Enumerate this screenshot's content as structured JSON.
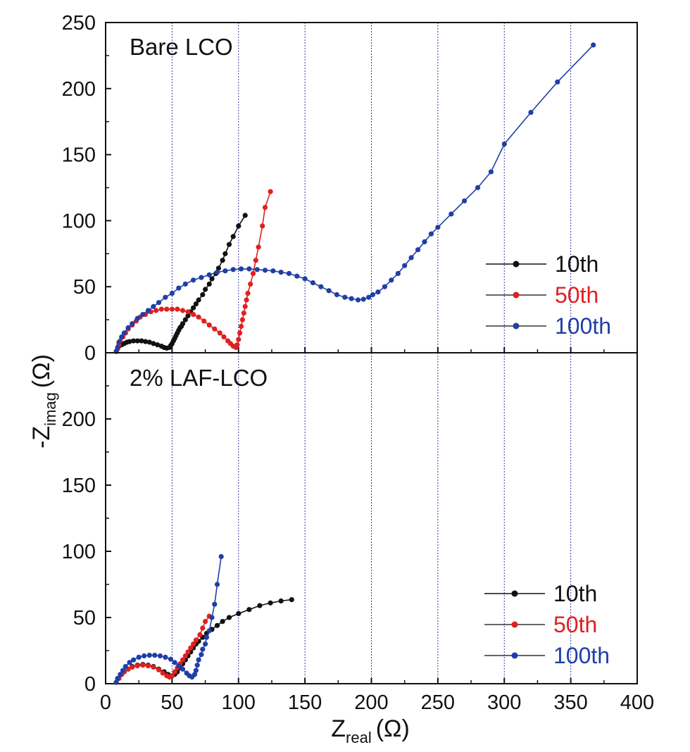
{
  "chart_data": [
    {
      "type": "scatter",
      "title": "Bare LCO",
      "xlabel": "Zreal (Ω)",
      "ylabel": "-Zimag (Ω)",
      "xlim": [
        0,
        400
      ],
      "ylim": [
        0,
        250
      ],
      "x_ticks": [
        0,
        50,
        100,
        150,
        200,
        250,
        300,
        350,
        400
      ],
      "y_ticks": [
        0,
        50,
        100,
        150,
        200,
        250
      ],
      "vertical_gridlines": [
        50,
        100,
        150,
        200,
        250,
        300,
        350
      ],
      "legend_position": "right",
      "series": [
        {
          "name": "10th",
          "color": "#111111",
          "points": [
            [
              8,
              1
            ],
            [
              9,
              3
            ],
            [
              10,
              5
            ],
            [
              12,
              6
            ],
            [
              14,
              7
            ],
            [
              16,
              8
            ],
            [
              18,
              8.5
            ],
            [
              21,
              9
            ],
            [
              24,
              9
            ],
            [
              27,
              9
            ],
            [
              30,
              8.5
            ],
            [
              33,
              8
            ],
            [
              36,
              7
            ],
            [
              39,
              6
            ],
            [
              42,
              5
            ],
            [
              44,
              4
            ],
            [
              46,
              3.5
            ],
            [
              48,
              4
            ],
            [
              49,
              5.5
            ],
            [
              50,
              7
            ],
            [
              51,
              9
            ],
            [
              52,
              11
            ],
            [
              53,
              13
            ],
            [
              54,
              15
            ],
            [
              55,
              17
            ],
            [
              56,
              19
            ],
            [
              57,
              20
            ],
            [
              58,
              22
            ],
            [
              60,
              25
            ],
            [
              62,
              28
            ],
            [
              64,
              31
            ],
            [
              66,
              34
            ],
            [
              68,
              37
            ],
            [
              70,
              40
            ],
            [
              73,
              44
            ],
            [
              75,
              48
            ],
            [
              78,
              52
            ],
            [
              80,
              56
            ],
            [
              83,
              60
            ],
            [
              85,
              64
            ],
            [
              88,
              70
            ],
            [
              90,
              75
            ],
            [
              93,
              82
            ],
            [
              96,
              88
            ],
            [
              100,
              96
            ],
            [
              105,
              104
            ]
          ]
        },
        {
          "name": "50th",
          "color": "#e02020",
          "points": [
            [
              8,
              1
            ],
            [
              9,
              3
            ],
            [
              10,
              6
            ],
            [
              11,
              9
            ],
            [
              13,
              12
            ],
            [
              15,
              15
            ],
            [
              17,
              18
            ],
            [
              20,
              21
            ],
            [
              23,
              24
            ],
            [
              26,
              27
            ],
            [
              30,
              29
            ],
            [
              34,
              31
            ],
            [
              38,
              32
            ],
            [
              42,
              33
            ],
            [
              46,
              33
            ],
            [
              50,
              33
            ],
            [
              54,
              33
            ],
            [
              58,
              32
            ],
            [
              62,
              31
            ],
            [
              66,
              29
            ],
            [
              70,
              27
            ],
            [
              74,
              24
            ],
            [
              78,
              21
            ],
            [
              82,
              18
            ],
            [
              86,
              15
            ],
            [
              89,
              12
            ],
            [
              92,
              9
            ],
            [
              94,
              7
            ],
            [
              96,
              5
            ],
            [
              98,
              4
            ],
            [
              99,
              6
            ],
            [
              100,
              10
            ],
            [
              101,
              15
            ],
            [
              102,
              20
            ],
            [
              103,
              25
            ],
            [
              104,
              30
            ],
            [
              105,
              35
            ],
            [
              106,
              40
            ],
            [
              107,
              45
            ],
            [
              109,
              52
            ],
            [
              111,
              60
            ],
            [
              113,
              70
            ],
            [
              115,
              80
            ],
            [
              118,
              96
            ],
            [
              120,
              110
            ],
            [
              124,
              122
            ]
          ]
        },
        {
          "name": "100th",
          "color": "#1f3fa6",
          "points": [
            [
              8,
              1
            ],
            [
              9,
              4
            ],
            [
              10,
              8
            ],
            [
              12,
              12
            ],
            [
              14,
              15
            ],
            [
              17,
              19
            ],
            [
              20,
              22
            ],
            [
              24,
              26
            ],
            [
              28,
              29
            ],
            [
              32,
              32
            ],
            [
              36,
              35
            ],
            [
              40,
              38
            ],
            [
              45,
              42
            ],
            [
              50,
              45
            ],
            [
              55,
              49
            ],
            [
              60,
              52
            ],
            [
              66,
              55
            ],
            [
              72,
              57
            ],
            [
              78,
              59
            ],
            [
              84,
              61
            ],
            [
              90,
              62
            ],
            [
              96,
              63
            ],
            [
              102,
              63.5
            ],
            [
              108,
              63.5
            ],
            [
              114,
              63
            ],
            [
              120,
              62.5
            ],
            [
              126,
              62
            ],
            [
              132,
              61
            ],
            [
              138,
              60
            ],
            [
              144,
              58
            ],
            [
              150,
              56
            ],
            [
              156,
              53
            ],
            [
              162,
              50
            ],
            [
              168,
              47
            ],
            [
              174,
              44
            ],
            [
              180,
              42
            ],
            [
              185,
              41
            ],
            [
              190,
              40
            ],
            [
              194,
              40.5
            ],
            [
              198,
              42
            ],
            [
              201,
              44
            ],
            [
              205,
              46
            ],
            [
              210,
              50
            ],
            [
              215,
              55
            ],
            [
              220,
              60
            ],
            [
              225,
              66
            ],
            [
              230,
              72
            ],
            [
              235,
              78
            ],
            [
              240,
              84
            ],
            [
              245,
              90
            ],
            [
              250,
              95
            ],
            [
              260,
              105
            ],
            [
              270,
              115
            ],
            [
              280,
              125
            ],
            [
              290,
              137
            ],
            [
              300,
              158
            ],
            [
              320,
              182
            ],
            [
              340,
              205
            ],
            [
              367,
              233
            ]
          ]
        }
      ]
    },
    {
      "type": "scatter",
      "title": "2% LAF-LCO",
      "xlabel": "Zreal (Ω)",
      "ylabel": "-Zimag (Ω)",
      "xlim": [
        0,
        400
      ],
      "ylim": [
        0,
        250
      ],
      "x_ticks": [
        0,
        50,
        100,
        150,
        200,
        250,
        300,
        350,
        400
      ],
      "y_ticks": [
        0,
        50,
        100,
        150,
        200
      ],
      "vertical_gridlines": [
        50,
        100,
        150,
        200,
        250,
        300,
        350
      ],
      "legend_position": "right",
      "series": [
        {
          "name": "10th",
          "color": "#111111",
          "points": [
            [
              8,
              1
            ],
            [
              10,
              4
            ],
            [
              12,
              7
            ],
            [
              14,
              9
            ],
            [
              17,
              11
            ],
            [
              20,
              13
            ],
            [
              24,
              14
            ],
            [
              28,
              14.5
            ],
            [
              32,
              14
            ],
            [
              36,
              13
            ],
            [
              40,
              11
            ],
            [
              44,
              9
            ],
            [
              47,
              7
            ],
            [
              50,
              6
            ],
            [
              52,
              7
            ],
            [
              54,
              9
            ],
            [
              56,
              12
            ],
            [
              58,
              15
            ],
            [
              60,
              18
            ],
            [
              62,
              21
            ],
            [
              64,
              24
            ],
            [
              66,
              27
            ],
            [
              68,
              30
            ],
            [
              70,
              32
            ],
            [
              73,
              35
            ],
            [
              76,
              38
            ],
            [
              80,
              41
            ],
            [
              84,
              44
            ],
            [
              88,
              47
            ],
            [
              93,
              50
            ],
            [
              100,
              53
            ],
            [
              108,
              56
            ],
            [
              116,
              59
            ],
            [
              124,
              61
            ],
            [
              132,
              62.5
            ],
            [
              140,
              63.5
            ]
          ]
        },
        {
          "name": "50th",
          "color": "#e02020",
          "points": [
            [
              8,
              1
            ],
            [
              10,
              4
            ],
            [
              12,
              7
            ],
            [
              14,
              9
            ],
            [
              17,
              11
            ],
            [
              20,
              12.5
            ],
            [
              24,
              13.5
            ],
            [
              28,
              14
            ],
            [
              32,
              13.5
            ],
            [
              36,
              12.5
            ],
            [
              40,
              10.5
            ],
            [
              43,
              8
            ],
            [
              46,
              6
            ],
            [
              48,
              5
            ],
            [
              50,
              6
            ],
            [
              52,
              9
            ],
            [
              54,
              12
            ],
            [
              56,
              15
            ],
            [
              58,
              18
            ],
            [
              60,
              21
            ],
            [
              62,
              24
            ],
            [
              64,
              27
            ],
            [
              66,
              30
            ],
            [
              68,
              33
            ],
            [
              71,
              37
            ],
            [
              73,
              42
            ],
            [
              75,
              47
            ],
            [
              78,
              51
            ]
          ]
        },
        {
          "name": "100th",
          "color": "#1f3fa6",
          "points": [
            [
              8,
              1
            ],
            [
              9,
              4
            ],
            [
              11,
              7
            ],
            [
              13,
              10
            ],
            [
              15,
              13
            ],
            [
              18,
              16
            ],
            [
              21,
              18
            ],
            [
              25,
              20
            ],
            [
              29,
              21
            ],
            [
              33,
              21.5
            ],
            [
              37,
              21.5
            ],
            [
              41,
              21
            ],
            [
              45,
              20
            ],
            [
              49,
              18.5
            ],
            [
              52,
              16
            ],
            [
              55,
              13.5
            ],
            [
              58,
              11
            ],
            [
              61,
              8
            ],
            [
              63,
              6
            ],
            [
              65,
              5
            ],
            [
              67,
              7
            ],
            [
              68,
              10
            ],
            [
              69,
              14
            ],
            [
              70,
              18
            ],
            [
              72,
              22
            ],
            [
              73,
              26
            ],
            [
              75,
              30
            ],
            [
              76,
              35
            ],
            [
              78,
              40
            ],
            [
              80,
              50
            ],
            [
              82,
              60
            ],
            [
              84,
              75
            ],
            [
              87,
              96
            ]
          ]
        }
      ]
    }
  ],
  "axis_titles": {
    "y_main": "-Z",
    "y_sub": "imag",
    "y_unit": "(Ω)",
    "x_main": "Z",
    "x_sub": "real",
    "x_unit": "(Ω)"
  }
}
